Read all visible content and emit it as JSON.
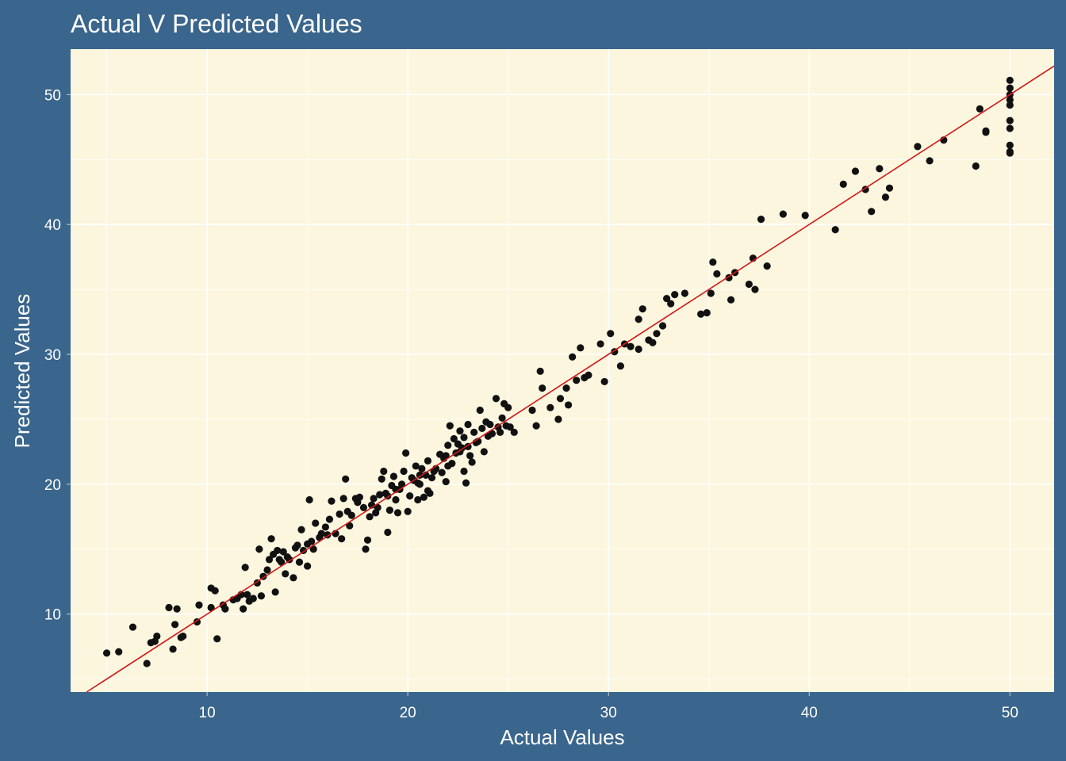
{
  "chart_data": {
    "type": "scatter",
    "title": "Actual V Predicted Values",
    "xlabel": "Actual Values",
    "ylabel": "Predicted Values",
    "xlim": [
      3.2,
      52.2
    ],
    "ylim": [
      4.0,
      53.5
    ],
    "xticks": [
      10,
      20,
      30,
      40,
      50
    ],
    "yticks": [
      10,
      20,
      30,
      40,
      50
    ],
    "x_tick_labels": [
      "10",
      "20",
      "30",
      "40",
      "50"
    ],
    "y_tick_labels": [
      "10",
      "20",
      "30",
      "40",
      "50"
    ],
    "grid": true,
    "legend": "none",
    "colors": {
      "background": "#3a658c",
      "panel": "#fdf6df",
      "grid": "#ffffff",
      "point": "#111111",
      "line": "#d01818",
      "text": "#ffffff"
    },
    "fit_line": {
      "type": "identity",
      "intercept": 0,
      "slope": 1
    },
    "points": [
      [
        5.0,
        7.0
      ],
      [
        5.6,
        7.1
      ],
      [
        6.3,
        9.0
      ],
      [
        7.0,
        6.2
      ],
      [
        7.2,
        7.8
      ],
      [
        7.4,
        7.9
      ],
      [
        7.5,
        8.3
      ],
      [
        8.1,
        10.5
      ],
      [
        8.3,
        7.3
      ],
      [
        8.4,
        9.2
      ],
      [
        8.5,
        10.4
      ],
      [
        8.7,
        8.2
      ],
      [
        8.8,
        8.3
      ],
      [
        9.5,
        9.4
      ],
      [
        9.6,
        10.7
      ],
      [
        10.2,
        12.0
      ],
      [
        10.2,
        10.5
      ],
      [
        10.4,
        11.8
      ],
      [
        10.5,
        8.1
      ],
      [
        10.8,
        10.7
      ],
      [
        10.9,
        10.4
      ],
      [
        11.3,
        11.1
      ],
      [
        11.5,
        11.2
      ],
      [
        11.7,
        11.5
      ],
      [
        11.8,
        10.4
      ],
      [
        11.9,
        13.6
      ],
      [
        12.0,
        11.5
      ],
      [
        12.1,
        11.0
      ],
      [
        12.3,
        11.2
      ],
      [
        12.5,
        12.4
      ],
      [
        12.6,
        15.0
      ],
      [
        12.7,
        11.4
      ],
      [
        12.8,
        12.9
      ],
      [
        13.0,
        13.4
      ],
      [
        13.1,
        14.2
      ],
      [
        13.2,
        15.8
      ],
      [
        13.3,
        14.6
      ],
      [
        13.4,
        11.7
      ],
      [
        13.5,
        14.9
      ],
      [
        13.6,
        14.2
      ],
      [
        13.7,
        14.0
      ],
      [
        13.8,
        14.8
      ],
      [
        13.9,
        13.1
      ],
      [
        14.0,
        14.4
      ],
      [
        14.1,
        14.2
      ],
      [
        14.3,
        12.8
      ],
      [
        14.4,
        15.1
      ],
      [
        14.5,
        15.3
      ],
      [
        14.6,
        14.0
      ],
      [
        14.7,
        16.5
      ],
      [
        14.8,
        14.9
      ],
      [
        15.0,
        13.7
      ],
      [
        15.1,
        18.8
      ],
      [
        15.2,
        15.6
      ],
      [
        15.3,
        15.0
      ],
      [
        15.4,
        17.0
      ],
      [
        15.6,
        15.9
      ],
      [
        15.7,
        16.2
      ],
      [
        15.9,
        16.7
      ],
      [
        16.1,
        17.3
      ],
      [
        16.2,
        18.7
      ],
      [
        16.4,
        16.2
      ],
      [
        16.6,
        17.7
      ],
      [
        16.7,
        15.8
      ],
      [
        16.8,
        18.9
      ],
      [
        16.9,
        20.4
      ],
      [
        17.1,
        16.8
      ],
      [
        17.2,
        17.6
      ],
      [
        17.4,
        18.9
      ],
      [
        17.5,
        18.6
      ],
      [
        17.6,
        19.0
      ],
      [
        17.8,
        18.2
      ],
      [
        17.9,
        15.0
      ],
      [
        18.0,
        15.7
      ],
      [
        18.1,
        17.5
      ],
      [
        18.2,
        18.4
      ],
      [
        18.3,
        18.9
      ],
      [
        18.5,
        18.2
      ],
      [
        18.6,
        19.2
      ],
      [
        18.7,
        20.4
      ],
      [
        18.8,
        21.0
      ],
      [
        18.9,
        19.3
      ],
      [
        19.0,
        16.3
      ],
      [
        19.1,
        18.0
      ],
      [
        19.2,
        19.9
      ],
      [
        19.3,
        20.6
      ],
      [
        19.4,
        18.8
      ],
      [
        19.5,
        17.8
      ],
      [
        19.6,
        19.6
      ],
      [
        19.7,
        20.0
      ],
      [
        19.8,
        21.0
      ],
      [
        19.9,
        22.4
      ],
      [
        20.0,
        17.9
      ],
      [
        20.1,
        19.1
      ],
      [
        20.2,
        20.5
      ],
      [
        20.3,
        20.3
      ],
      [
        20.4,
        21.4
      ],
      [
        20.5,
        18.8
      ],
      [
        20.6,
        20.0
      ],
      [
        20.7,
        21.2
      ],
      [
        20.8,
        19.0
      ],
      [
        20.9,
        20.7
      ],
      [
        21.0,
        21.8
      ],
      [
        21.2,
        20.5
      ],
      [
        21.4,
        21.2
      ],
      [
        21.6,
        22.3
      ],
      [
        21.7,
        20.9
      ],
      [
        21.8,
        22.0
      ],
      [
        21.9,
        20.2
      ],
      [
        22.0,
        23.0
      ],
      [
        22.1,
        24.5
      ],
      [
        22.2,
        21.6
      ],
      [
        22.3,
        23.5
      ],
      [
        22.4,
        22.4
      ],
      [
        22.5,
        23.1
      ],
      [
        22.6,
        22.5
      ],
      [
        22.7,
        22.8
      ],
      [
        22.8,
        23.6
      ],
      [
        22.9,
        20.1
      ],
      [
        23.0,
        24.6
      ],
      [
        23.1,
        22.2
      ],
      [
        23.2,
        21.7
      ],
      [
        23.3,
        24.0
      ],
      [
        23.5,
        23.3
      ],
      [
        23.6,
        25.7
      ],
      [
        23.7,
        24.3
      ],
      [
        23.8,
        22.5
      ],
      [
        23.9,
        24.8
      ],
      [
        24.0,
        23.7
      ],
      [
        24.1,
        24.6
      ],
      [
        24.2,
        23.9
      ],
      [
        24.4,
        26.6
      ],
      [
        24.5,
        24.4
      ],
      [
        24.6,
        24.0
      ],
      [
        24.7,
        25.1
      ],
      [
        24.8,
        26.2
      ],
      [
        25.0,
        25.9
      ],
      [
        25.1,
        24.4
      ],
      [
        25.3,
        24.0
      ],
      [
        26.2,
        25.7
      ],
      [
        26.4,
        24.5
      ],
      [
        26.6,
        28.7
      ],
      [
        26.7,
        27.4
      ],
      [
        27.1,
        25.9
      ],
      [
        27.5,
        25.0
      ],
      [
        27.6,
        26.6
      ],
      [
        27.9,
        27.4
      ],
      [
        28.0,
        26.1
      ],
      [
        28.2,
        29.8
      ],
      [
        28.4,
        28.0
      ],
      [
        28.6,
        30.5
      ],
      [
        28.8,
        28.2
      ],
      [
        29.0,
        28.4
      ],
      [
        29.6,
        30.8
      ],
      [
        29.8,
        27.9
      ],
      [
        30.1,
        31.6
      ],
      [
        30.3,
        30.2
      ],
      [
        30.6,
        29.1
      ],
      [
        30.8,
        30.8
      ],
      [
        31.1,
        30.6
      ],
      [
        31.5,
        30.4
      ],
      [
        31.5,
        32.7
      ],
      [
        31.7,
        33.5
      ],
      [
        32.0,
        31.1
      ],
      [
        32.2,
        30.9
      ],
      [
        32.4,
        31.6
      ],
      [
        32.7,
        32.2
      ],
      [
        32.9,
        34.3
      ],
      [
        33.1,
        33.9
      ],
      [
        33.3,
        34.6
      ],
      [
        33.8,
        34.7
      ],
      [
        34.6,
        33.1
      ],
      [
        34.9,
        33.2
      ],
      [
        35.1,
        34.7
      ],
      [
        35.2,
        37.1
      ],
      [
        35.4,
        36.2
      ],
      [
        36.0,
        35.9
      ],
      [
        36.1,
        34.2
      ],
      [
        36.3,
        36.3
      ],
      [
        37.0,
        35.4
      ],
      [
        37.2,
        37.4
      ],
      [
        37.3,
        35.0
      ],
      [
        37.6,
        40.4
      ],
      [
        37.9,
        36.8
      ],
      [
        38.7,
        40.8
      ],
      [
        39.8,
        40.7
      ],
      [
        41.3,
        39.6
      ],
      [
        41.7,
        43.1
      ],
      [
        42.3,
        44.1
      ],
      [
        42.8,
        42.7
      ],
      [
        43.1,
        41.0
      ],
      [
        43.5,
        44.3
      ],
      [
        43.8,
        42.1
      ],
      [
        44.0,
        42.8
      ],
      [
        45.4,
        46.0
      ],
      [
        46.0,
        44.9
      ],
      [
        46.7,
        46.5
      ],
      [
        48.3,
        44.5
      ],
      [
        48.5,
        48.9
      ],
      [
        48.8,
        47.2
      ],
      [
        48.8,
        47.1
      ],
      [
        50.0,
        51.1
      ],
      [
        50.0,
        50.5
      ],
      [
        50.0,
        50.0
      ],
      [
        50.0,
        49.6
      ],
      [
        50.0,
        49.2
      ],
      [
        50.0,
        48.0
      ],
      [
        50.0,
        47.4
      ],
      [
        50.0,
        46.1
      ],
      [
        50.0,
        45.6
      ],
      [
        50.0,
        45.5
      ],
      [
        20.5,
        20.1
      ],
      [
        21.0,
        19.5
      ],
      [
        21.3,
        21.0
      ],
      [
        22.0,
        21.4
      ],
      [
        22.8,
        21.0
      ],
      [
        23.4,
        23.2
      ],
      [
        19.4,
        19.6
      ],
      [
        19.0,
        19.1
      ],
      [
        18.4,
        17.8
      ],
      [
        17.0,
        17.9
      ],
      [
        16.0,
        16.1
      ],
      [
        15.0,
        15.4
      ],
      [
        21.1,
        19.3
      ],
      [
        21.9,
        22.2
      ],
      [
        20.6,
        20.7
      ],
      [
        22.6,
        24.1
      ],
      [
        24.9,
        24.5
      ],
      [
        23.0,
        22.9
      ]
    ]
  }
}
